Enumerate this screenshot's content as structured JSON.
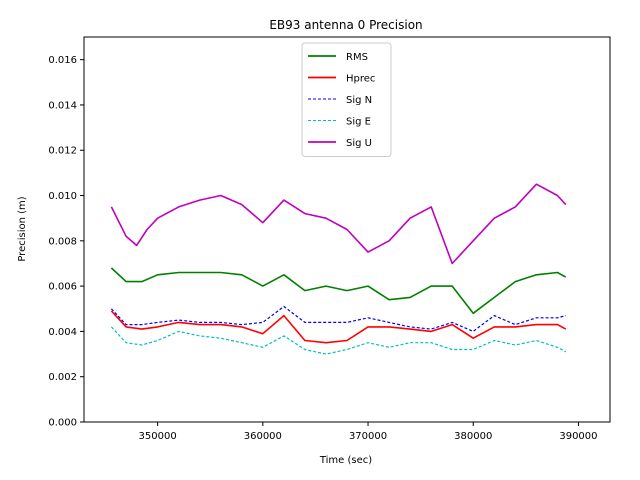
{
  "chart_data": {
    "type": "line",
    "title": "EB93 antenna 0 Precision",
    "xlabel": "Time (sec)",
    "ylabel": "Precision (m)",
    "xlim": [
      343000,
      393000
    ],
    "ylim": [
      0,
      0.017
    ],
    "xticks": [
      350000,
      360000,
      370000,
      380000,
      390000
    ],
    "xtick_labels": [
      "350000",
      "360000",
      "370000",
      "380000",
      "390000"
    ],
    "yticks": [
      0,
      0.002,
      0.004,
      0.006,
      0.008,
      0.01,
      0.012,
      0.014,
      0.016
    ],
    "ytick_labels": [
      "0.000",
      "0.002",
      "0.004",
      "0.006",
      "0.008",
      "0.010",
      "0.012",
      "0.014",
      "0.016"
    ],
    "grid": false,
    "legend_position": "top-center",
    "series": [
      {
        "name": "RMS",
        "color": "#008000",
        "style": "solid",
        "x": [
          345600,
          347000,
          348500,
          350000,
          352000,
          354000,
          356000,
          358000,
          360000,
          362000,
          364000,
          366000,
          368000,
          370000,
          372000,
          374000,
          376000,
          378000,
          380000,
          382000,
          384000,
          386000,
          388000,
          388800
        ],
        "y": [
          0.0068,
          0.0062,
          0.0062,
          0.0065,
          0.0066,
          0.0066,
          0.0066,
          0.0065,
          0.006,
          0.0065,
          0.0058,
          0.006,
          0.0058,
          0.006,
          0.0054,
          0.0055,
          0.006,
          0.006,
          0.0048,
          0.0055,
          0.0062,
          0.0065,
          0.0066,
          0.0064
        ]
      },
      {
        "name": "Hprec",
        "color": "#ff0000",
        "style": "solid",
        "x": [
          345600,
          347000,
          348500,
          350000,
          352000,
          354000,
          356000,
          358000,
          360000,
          362000,
          364000,
          366000,
          368000,
          370000,
          372000,
          374000,
          376000,
          378000,
          380000,
          382000,
          384000,
          386000,
          388000,
          388800
        ],
        "y": [
          0.0049,
          0.0042,
          0.0041,
          0.0042,
          0.0044,
          0.0043,
          0.0043,
          0.0042,
          0.0039,
          0.0047,
          0.0036,
          0.0035,
          0.0036,
          0.0042,
          0.0042,
          0.0041,
          0.004,
          0.0043,
          0.0037,
          0.0042,
          0.0042,
          0.0043,
          0.0043,
          0.0041
        ]
      },
      {
        "name": "Sig N",
        "color": "#0000ff",
        "style": "dashed",
        "x": [
          345600,
          347000,
          348500,
          350000,
          352000,
          354000,
          356000,
          358000,
          360000,
          362000,
          364000,
          366000,
          368000,
          370000,
          372000,
          374000,
          376000,
          378000,
          380000,
          382000,
          384000,
          386000,
          388000,
          388800
        ],
        "y": [
          0.005,
          0.0043,
          0.0043,
          0.0044,
          0.0045,
          0.0044,
          0.0044,
          0.0043,
          0.0044,
          0.0051,
          0.0044,
          0.0044,
          0.0044,
          0.0046,
          0.0044,
          0.0042,
          0.0041,
          0.0044,
          0.004,
          0.0047,
          0.0043,
          0.0046,
          0.0046,
          0.0047
        ]
      },
      {
        "name": "Sig E",
        "color": "#00bfbf",
        "style": "dashed",
        "x": [
          345600,
          347000,
          348500,
          350000,
          352000,
          354000,
          356000,
          358000,
          360000,
          362000,
          364000,
          366000,
          368000,
          370000,
          372000,
          374000,
          376000,
          378000,
          380000,
          382000,
          384000,
          386000,
          388000,
          388800
        ],
        "y": [
          0.0042,
          0.0035,
          0.0034,
          0.0036,
          0.004,
          0.0038,
          0.0037,
          0.0035,
          0.0033,
          0.0038,
          0.0032,
          0.003,
          0.0032,
          0.0035,
          0.0033,
          0.0035,
          0.0035,
          0.0032,
          0.0032,
          0.0036,
          0.0034,
          0.0036,
          0.0033,
          0.0031
        ]
      },
      {
        "name": "Sig U",
        "color": "#bf00bf",
        "style": "solid",
        "x": [
          345600,
          347000,
          348000,
          349000,
          350000,
          352000,
          354000,
          356000,
          358000,
          360000,
          362000,
          364000,
          366000,
          368000,
          370000,
          372000,
          374000,
          376000,
          378000,
          380000,
          382000,
          384000,
          386000,
          388000,
          388800
        ],
        "y": [
          0.0095,
          0.0082,
          0.0078,
          0.0085,
          0.009,
          0.0095,
          0.0098,
          0.01,
          0.0096,
          0.0088,
          0.0098,
          0.0092,
          0.009,
          0.0085,
          0.0075,
          0.008,
          0.009,
          0.0095,
          0.007,
          0.008,
          0.009,
          0.0095,
          0.0105,
          0.01,
          0.0096
        ]
      }
    ]
  }
}
